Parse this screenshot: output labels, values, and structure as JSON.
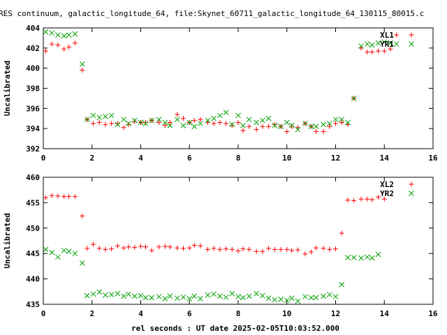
{
  "title": "RES continuum, galactic_longitude_64, file:Skynet_60711_galactic_longitude_64_130115_80015.c",
  "xlabel": "rel seconds : UT date 2025-02-05T10:03:52.000",
  "colors": {
    "xl": "#ff0000",
    "yr": "#00a000"
  },
  "chart_data": [
    {
      "type": "scatter",
      "ylabel": "Uncalibrated",
      "xlim": [
        0,
        16
      ],
      "ylim": [
        392,
        404
      ],
      "xticks": [
        0,
        2,
        4,
        6,
        8,
        10,
        12,
        14,
        16
      ],
      "yticks": [
        392,
        394,
        396,
        398,
        400,
        402,
        404
      ],
      "legend_position": "top-right",
      "grid": false,
      "series": [
        {
          "name": "XL1",
          "marker": "plus",
          "color": "#ff0000",
          "x": [
            0.1,
            0.35,
            0.6,
            0.85,
            1.05,
            1.3,
            1.6,
            1.8,
            2.05,
            2.3,
            2.55,
            2.8,
            3.05,
            3.3,
            3.5,
            3.75,
            4.0,
            4.2,
            4.45,
            4.75,
            5.0,
            5.2,
            5.5,
            5.75,
            6.0,
            6.2,
            6.45,
            6.75,
            7.0,
            7.25,
            7.5,
            7.75,
            8.0,
            8.2,
            8.45,
            8.75,
            9.0,
            9.25,
            9.5,
            9.75,
            10.0,
            10.2,
            10.45,
            10.75,
            11.0,
            11.2,
            11.5,
            11.75,
            12.0,
            12.25,
            12.5,
            12.75,
            13.05,
            13.3,
            13.5,
            13.75,
            14.0,
            14.25,
            14.5,
            14.75,
            15.05
          ],
          "y": [
            401.7,
            402.4,
            402.3,
            401.9,
            402.1,
            402.5,
            399.8,
            394.9,
            394.5,
            394.6,
            394.4,
            394.5,
            394.5,
            394.1,
            394.4,
            394.7,
            394.6,
            394.6,
            394.8,
            394.6,
            394.3,
            394.6,
            395.4,
            395.0,
            394.6,
            394.8,
            394.9,
            394.6,
            394.5,
            394.6,
            394.5,
            394.3,
            394.6,
            393.8,
            394.2,
            393.9,
            394.2,
            394.2,
            394.4,
            394.2,
            393.7,
            394.2,
            394.1,
            394.5,
            394.2,
            393.7,
            393.7,
            394.2,
            394.5,
            394.6,
            394.4,
            397.0,
            402.0,
            401.6,
            401.6,
            401.7,
            401.7,
            401.9,
            403.3,
            null,
            null
          ]
        },
        {
          "name": "YR1",
          "marker": "cross",
          "color": "#00a000",
          "x": [
            0.1,
            0.35,
            0.6,
            0.85,
            1.05,
            1.3,
            1.6,
            1.8,
            2.05,
            2.3,
            2.55,
            2.8,
            3.05,
            3.3,
            3.5,
            3.75,
            4.0,
            4.2,
            4.45,
            4.75,
            5.0,
            5.2,
            5.5,
            5.75,
            6.0,
            6.2,
            6.45,
            6.75,
            7.0,
            7.25,
            7.5,
            7.75,
            8.0,
            8.2,
            8.45,
            8.75,
            9.0,
            9.25,
            9.5,
            9.75,
            10.0,
            10.2,
            10.45,
            10.75,
            11.0,
            11.2,
            11.5,
            11.75,
            12.0,
            12.25,
            12.5,
            12.75,
            13.05,
            13.3,
            13.5,
            13.75,
            14.0,
            14.25,
            14.5,
            14.75,
            15.05
          ],
          "y": [
            403.6,
            403.5,
            403.3,
            403.2,
            403.3,
            403.4,
            400.4,
            394.9,
            395.3,
            395.1,
            395.2,
            395.3,
            394.4,
            394.9,
            394.5,
            394.8,
            394.6,
            394.5,
            394.8,
            394.9,
            394.6,
            394.3,
            394.9,
            394.3,
            394.6,
            394.2,
            394.5,
            394.8,
            395.0,
            395.3,
            395.6,
            394.4,
            395.3,
            394.3,
            394.9,
            394.6,
            394.8,
            395.0,
            394.3,
            394.2,
            394.6,
            394.3,
            393.9,
            394.5,
            394.2,
            394.2,
            394.4,
            394.5,
            394.9,
            394.9,
            394.6,
            397.0,
            402.2,
            402.4,
            402.3,
            402.5,
            402.6,
            402.5,
            402.4,
            null,
            null
          ]
        }
      ]
    },
    {
      "type": "scatter",
      "ylabel": "Uncalibrated",
      "xlim": [
        0,
        16
      ],
      "ylim": [
        435,
        460
      ],
      "xticks": [
        0,
        2,
        4,
        6,
        8,
        10,
        12,
        14,
        16
      ],
      "yticks": [
        435,
        440,
        445,
        450,
        455,
        460
      ],
      "legend_position": "top-right",
      "grid": false,
      "series": [
        {
          "name": "XL2",
          "marker": "plus",
          "color": "#ff0000",
          "x": [
            0.1,
            0.35,
            0.6,
            0.85,
            1.05,
            1.3,
            1.6,
            1.8,
            2.05,
            2.3,
            2.55,
            2.8,
            3.05,
            3.3,
            3.5,
            3.75,
            4.0,
            4.2,
            4.45,
            4.75,
            5.0,
            5.2,
            5.5,
            5.75,
            6.0,
            6.2,
            6.45,
            6.75,
            7.0,
            7.25,
            7.5,
            7.75,
            8.0,
            8.2,
            8.45,
            8.75,
            9.0,
            9.25,
            9.5,
            9.75,
            10.0,
            10.2,
            10.45,
            10.75,
            11.0,
            11.2,
            11.5,
            11.75,
            12.0,
            12.25,
            12.5,
            12.75,
            13.05,
            13.3,
            13.5,
            13.75,
            14.0,
            14.25,
            14.5,
            14.75,
            15.05
          ],
          "y": [
            456.0,
            456.4,
            456.3,
            456.2,
            456.2,
            456.2,
            452.4,
            446.0,
            446.8,
            446.0,
            445.8,
            445.9,
            446.5,
            446.1,
            446.3,
            446.2,
            446.4,
            446.3,
            445.6,
            446.3,
            446.4,
            446.3,
            446.1,
            446.0,
            446.1,
            446.6,
            446.5,
            445.8,
            446.0,
            445.8,
            445.9,
            445.8,
            445.5,
            445.9,
            445.8,
            445.4,
            445.4,
            446.0,
            445.8,
            445.8,
            445.8,
            445.6,
            445.7,
            444.9,
            445.3,
            446.1,
            446.0,
            445.8,
            445.9,
            449.0,
            455.5,
            455.4,
            455.7,
            455.7,
            455.6,
            456.1,
            455.7,
            null,
            null,
            null,
            null
          ]
        },
        {
          "name": "YR2",
          "marker": "cross",
          "color": "#00a000",
          "x": [
            0.1,
            0.35,
            0.6,
            0.85,
            1.05,
            1.3,
            1.6,
            1.8,
            2.05,
            2.3,
            2.55,
            2.8,
            3.05,
            3.3,
            3.5,
            3.75,
            4.0,
            4.2,
            4.45,
            4.75,
            5.0,
            5.2,
            5.5,
            5.75,
            6.0,
            6.2,
            6.45,
            6.75,
            7.0,
            7.25,
            7.5,
            7.75,
            8.0,
            8.2,
            8.45,
            8.75,
            9.0,
            9.25,
            9.5,
            9.75,
            10.0,
            10.2,
            10.45,
            10.75,
            11.0,
            11.2,
            11.5,
            11.75,
            12.0,
            12.25,
            12.5,
            12.75,
            13.05,
            13.3,
            13.5,
            13.75,
            14.0,
            14.25,
            14.5,
            14.75,
            15.05
          ],
          "y": [
            445.8,
            445.2,
            444.3,
            445.6,
            445.4,
            445.0,
            443.1,
            436.7,
            437.0,
            437.4,
            436.8,
            436.9,
            437.1,
            436.6,
            437.0,
            436.6,
            436.7,
            436.3,
            436.3,
            436.5,
            436.1,
            436.6,
            436.2,
            436.4,
            436.1,
            436.6,
            436.1,
            436.8,
            437.0,
            436.6,
            436.4,
            437.1,
            436.5,
            436.3,
            436.6,
            437.1,
            436.7,
            436.2,
            435.9,
            436.0,
            435.8,
            436.2,
            435.6,
            436.5,
            436.3,
            436.3,
            436.6,
            436.9,
            436.5,
            438.9,
            444.2,
            444.2,
            444.1,
            444.3,
            444.1,
            444.8,
            null,
            null,
            null,
            null,
            null
          ]
        }
      ]
    }
  ]
}
